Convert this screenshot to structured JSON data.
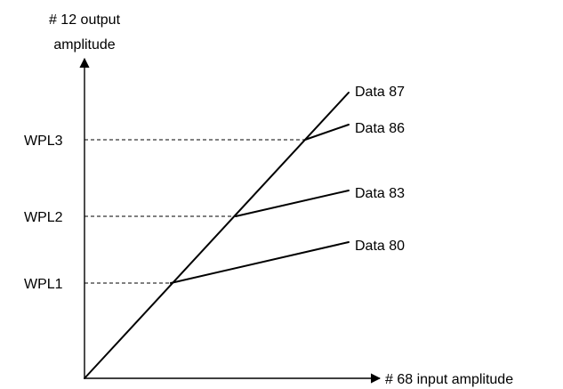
{
  "axes": {
    "y_label_line1": "# 12 output",
    "y_label_line2": "amplitude",
    "x_label": "# 68 input amplitude"
  },
  "levels": {
    "wpl1": "WPL1",
    "wpl2": "WPL2",
    "wpl3": "WPL3"
  },
  "curves": {
    "data87": "Data 87",
    "data86": "Data 86",
    "data83": "Data 83",
    "data80": "Data 80"
  }
}
